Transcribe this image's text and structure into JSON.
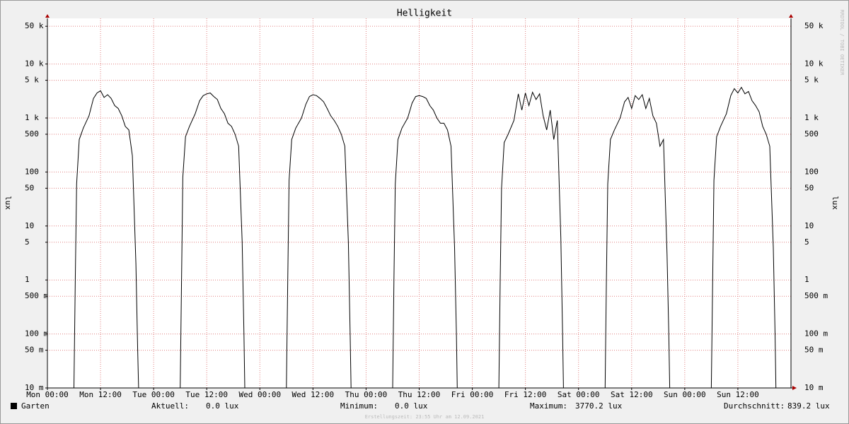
{
  "chart_data": {
    "type": "line",
    "title": "Helligkeit",
    "y_label": "lux",
    "y_scale": "log",
    "grid": true,
    "watermark": "RRDTOOL / TOBI OETIKER",
    "footer": "Erstellungszeit: 23:55 Uhr am 12.09.2021",
    "xlim": [
      0,
      168
    ],
    "xticks": [
      {
        "value": 0,
        "label": "Mon 00:00"
      },
      {
        "value": 12,
        "label": "Mon 12:00"
      },
      {
        "value": 24,
        "label": "Tue 00:00"
      },
      {
        "value": 36,
        "label": "Tue 12:00"
      },
      {
        "value": 48,
        "label": "Wed 00:00"
      },
      {
        "value": 60,
        "label": "Wed 12:00"
      },
      {
        "value": 72,
        "label": "Thu 00:00"
      },
      {
        "value": 84,
        "label": "Thu 12:00"
      },
      {
        "value": 96,
        "label": "Fri 00:00"
      },
      {
        "value": 108,
        "label": "Fri 12:00"
      },
      {
        "value": 120,
        "label": "Sat 00:00"
      },
      {
        "value": 132,
        "label": "Sat 12:00"
      },
      {
        "value": 144,
        "label": "Sun 00:00"
      },
      {
        "value": 156,
        "label": "Sun 12:00"
      }
    ],
    "ylim": [
      0.01,
      70000
    ],
    "yticks": [
      {
        "value": 0.01,
        "label": "10 m"
      },
      {
        "value": 0.05,
        "label": "50 m"
      },
      {
        "value": 0.1,
        "label": "100 m"
      },
      {
        "value": 0.5,
        "label": "500 m"
      },
      1,
      5,
      10,
      50,
      100,
      500,
      {
        "value": 1000,
        "label": "1 k"
      },
      {
        "value": 5000,
        "label": "5 k"
      },
      {
        "value": 10000,
        "label": "10 k"
      },
      {
        "value": 50000,
        "label": "50 k"
      }
    ],
    "x": [
      0,
      6,
      6.3,
      6.6,
      7.2,
      8.1,
      9.4,
      10.4,
      11.2,
      12,
      12.8,
      13.6,
      14.4,
      15.2,
      16,
      16.8,
      17.6,
      18.4,
      19.2,
      20,
      20.4,
      20.6,
      21,
      24,
      30,
      30.3,
      30.6,
      31.2,
      32.1,
      33.4,
      34.4,
      35.2,
      36,
      36.8,
      37.6,
      38.4,
      39.2,
      40,
      40.8,
      41.6,
      42.4,
      43.2,
      44,
      44.4,
      44.6,
      45,
      48,
      54,
      54.3,
      54.6,
      55.2,
      56.1,
      57.4,
      58.4,
      59.2,
      60,
      60.8,
      61.6,
      62.4,
      63.2,
      64,
      64.8,
      65.6,
      66.4,
      67.2,
      68,
      68.4,
      68.6,
      69,
      72,
      78,
      78.3,
      78.6,
      79.2,
      80.1,
      81.4,
      82.4,
      83.2,
      84,
      84.8,
      85.6,
      86.4,
      87.2,
      88,
      88.8,
      89.6,
      90.4,
      91.2,
      92,
      92.4,
      92.6,
      93,
      96,
      102,
      102.3,
      102.6,
      103.2,
      104.1,
      105.4,
      106.4,
      107.2,
      108,
      108.8,
      109.6,
      110.4,
      111.2,
      112,
      112.8,
      113.6,
      114.4,
      115.2,
      116,
      116.4,
      116.6,
      117,
      120,
      126,
      126.3,
      126.6,
      127.2,
      128.1,
      129.4,
      130.4,
      131.2,
      132,
      132.8,
      133.6,
      134.4,
      135.2,
      136,
      136.8,
      137.6,
      138.4,
      139.2,
      140,
      140.4,
      140.6,
      141,
      144,
      150,
      150.3,
      150.6,
      151.2,
      152.1,
      153.4,
      154.4,
      155.2,
      156,
      156.8,
      157.6,
      158.4,
      159.2,
      160,
      160.8,
      161.6,
      162.4,
      163.2,
      164,
      164.4,
      164.6,
      165,
      168
    ],
    "series": [
      {
        "name": "Garten",
        "color": "#000000",
        "values": [
          0,
          0,
          1,
          60,
          400,
          650,
          1100,
          2300,
          2900,
          3200,
          2400,
          2700,
          2300,
          1700,
          1500,
          1100,
          700,
          600,
          200,
          2,
          0.05,
          0,
          0,
          0,
          0,
          1,
          80,
          450,
          700,
          1200,
          2100,
          2600,
          2800,
          2900,
          2500,
          2200,
          1500,
          1200,
          800,
          700,
          500,
          300,
          5,
          0.1,
          0,
          0,
          0,
          0,
          1,
          70,
          400,
          650,
          1000,
          1800,
          2500,
          2700,
          2600,
          2300,
          2000,
          1500,
          1100,
          900,
          700,
          500,
          300,
          5,
          0.1,
          0,
          0,
          0,
          0,
          1,
          60,
          400,
          650,
          1000,
          1900,
          2500,
          2600,
          2500,
          2300,
          1700,
          1400,
          1000,
          800,
          800,
          600,
          300,
          4,
          0.1,
          0,
          0,
          0,
          0,
          1,
          50,
          350,
          500,
          900,
          2800,
          1400,
          2900,
          1700,
          3000,
          2200,
          2800,
          1100,
          600,
          1400,
          400,
          900,
          6,
          0.1,
          0,
          0,
          0,
          0,
          1,
          60,
          400,
          600,
          1000,
          2000,
          2400,
          1500,
          2600,
          2200,
          2700,
          1500,
          2300,
          1100,
          800,
          300,
          400,
          3,
          0.1,
          0,
          0,
          0,
          0,
          1,
          70,
          450,
          700,
          1200,
          2600,
          3500,
          2900,
          3700,
          2800,
          3100,
          2100,
          1700,
          1300,
          700,
          500,
          300,
          4,
          0.1,
          0,
          0,
          0
        ]
      }
    ],
    "stats": [
      {
        "label": "Aktuell:",
        "value": "0.0 lux"
      },
      {
        "label": "Minimum:",
        "value": "0.0 lux"
      },
      {
        "label": "Maximum:",
        "value": "3770.2 lux"
      },
      {
        "label": "Durchschnitt:",
        "value": "839.2 lux"
      }
    ]
  }
}
